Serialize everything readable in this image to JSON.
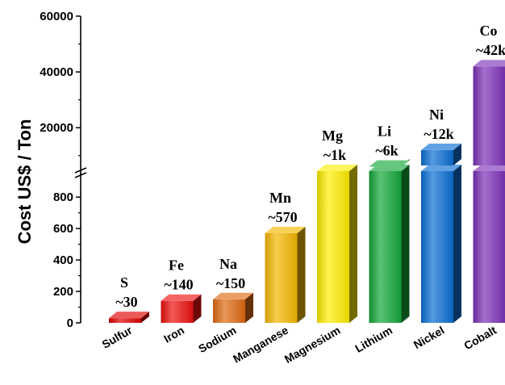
{
  "chart_data": {
    "type": "bar",
    "title": "",
    "xlabel": "",
    "ylabel": "Cost US$ / Ton",
    "axis_break": true,
    "ylim_lower": [
      0,
      950
    ],
    "ylim_upper": [
      3000,
      60000
    ],
    "yticks_lower": [
      "0",
      "200",
      "400",
      "600",
      "800"
    ],
    "yticks_upper": [
      "20000",
      "40000",
      "60000"
    ],
    "categories": [
      "Sulfur",
      "Iron",
      "Sodium",
      "Manganese",
      "Magnesium",
      "Lithium",
      "Nickel",
      "Cobalt"
    ],
    "symbols": [
      "S",
      "Fe",
      "Na",
      "Mn",
      "Mg",
      "Li",
      "Ni",
      "Co"
    ],
    "price_labels": [
      "~30",
      "~140",
      "~150",
      "~570",
      "~1k",
      "~6k",
      "~12k",
      "~42k"
    ],
    "values": [
      30,
      140,
      150,
      570,
      1000,
      6000,
      12000,
      42000
    ],
    "colors": [
      "#e00000",
      "#ee1111",
      "#e06a12",
      "#f5b800",
      "#ffee00",
      "#14a83a",
      "#0a6fd4",
      "#7d32b8"
    ]
  }
}
